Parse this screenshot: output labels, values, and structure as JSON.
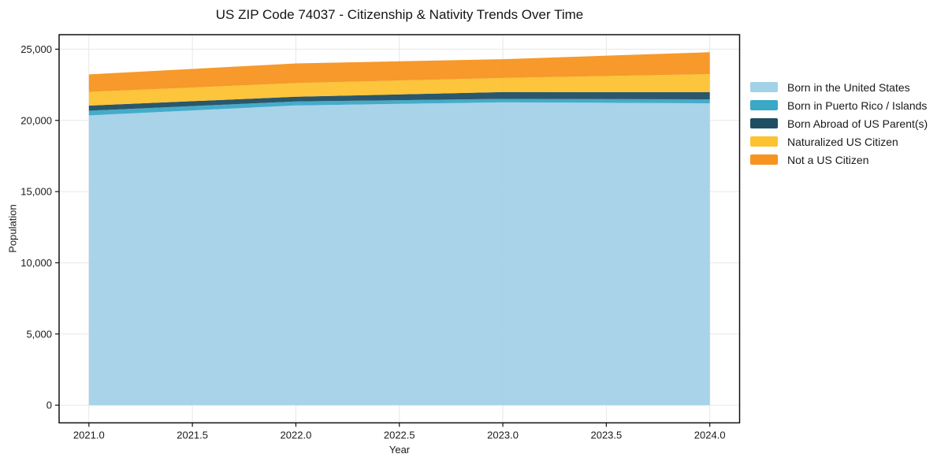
{
  "title": "US ZIP Code 74037 - Citizenship & Nativity Trends Over Time",
  "axes": {
    "xlabel": "Year",
    "ylabel": "Population",
    "xticks": [
      {
        "value": 2021.0,
        "label": "2021.0"
      },
      {
        "value": 2021.5,
        "label": "2021.5"
      },
      {
        "value": 2022.0,
        "label": "2022.0"
      },
      {
        "value": 2022.5,
        "label": "2022.5"
      },
      {
        "value": 2023.0,
        "label": "2023.0"
      },
      {
        "value": 2023.5,
        "label": "2023.5"
      },
      {
        "value": 2024.0,
        "label": "2024.0"
      }
    ],
    "yticks": [
      {
        "value": 0,
        "label": "0"
      },
      {
        "value": 5000,
        "label": "5,000"
      },
      {
        "value": 10000,
        "label": "10,000"
      },
      {
        "value": 15000,
        "label": "15,000"
      },
      {
        "value": 20000,
        "label": "20,000"
      },
      {
        "value": 25000,
        "label": "25,000"
      }
    ]
  },
  "chart_data": {
    "type": "area",
    "stacked": true,
    "title": "US ZIP Code 74037 - Citizenship & Nativity Trends Over Time",
    "xlabel": "Year",
    "ylabel": "Population",
    "x": [
      2021,
      2022,
      2023,
      2024
    ],
    "xlim": [
      2020.856,
      2024.144
    ],
    "ylim": [
      -1240,
      26020
    ],
    "grid": true,
    "legend_position": "right",
    "series": [
      {
        "name": "Born in the United States",
        "color": "#A3D1E8",
        "values": [
          20350,
          21050,
          21270,
          21200
        ]
      },
      {
        "name": "Born in Puerto Rico / Islands",
        "color": "#3AA8C6",
        "values": [
          330,
          280,
          240,
          280
        ]
      },
      {
        "name": "Born Abroad of US Parent(s)",
        "color": "#1F4E63",
        "values": [
          360,
          330,
          480,
          500
        ]
      },
      {
        "name": "Naturalized US Citizen",
        "color": "#FCC230",
        "values": [
          960,
          960,
          990,
          1270
        ]
      },
      {
        "name": "Not a US Citizen",
        "color": "#F79420",
        "values": [
          1230,
          1380,
          1320,
          1540
        ]
      }
    ],
    "totals_by_year": [
      23230,
      24000,
      24300,
      24790
    ],
    "spine_color": "#111111",
    "grid_color": "#e7e7e7"
  }
}
